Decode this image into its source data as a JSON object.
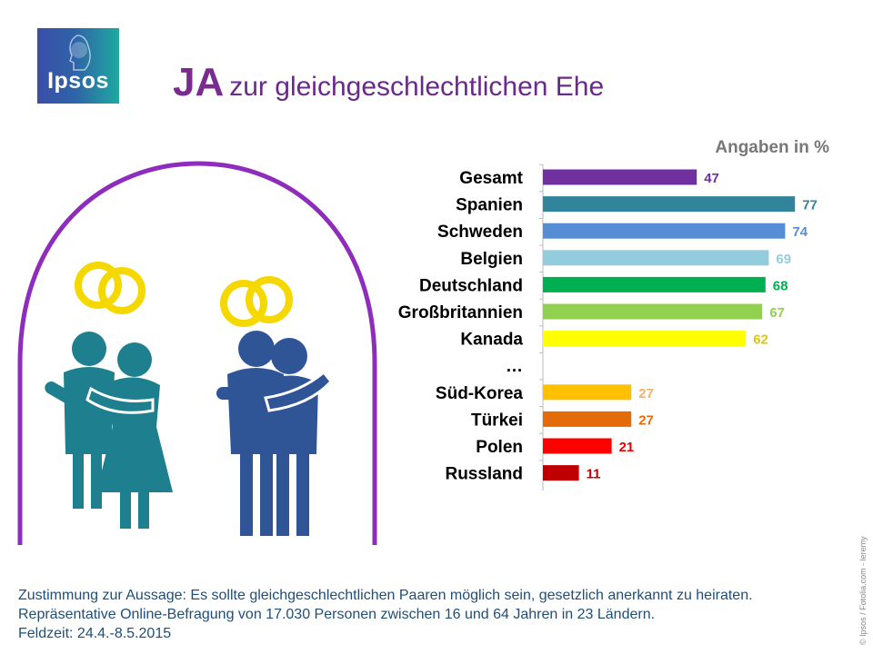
{
  "brand": {
    "logo_text": "Ipsos"
  },
  "title": {
    "bold": "JA",
    "rest": "zur gleichgeschlechtlichen Ehe"
  },
  "unit_label": "Angaben in %",
  "chart_data": {
    "type": "bar",
    "orientation": "horizontal",
    "categories": [
      "Gesamt",
      "Spanien",
      "Schweden",
      "Belgien",
      "Deutschland",
      "Großbritannien",
      "Kanada",
      "…",
      "Süd-Korea",
      "Türkei",
      "Polen",
      "Russland"
    ],
    "values": [
      47,
      77,
      74,
      69,
      68,
      67,
      62,
      null,
      27,
      27,
      21,
      11
    ],
    "colors": [
      "#7030a0",
      "#31849b",
      "#558ed5",
      "#93cddd",
      "#00b050",
      "#92d050",
      "#ffff00",
      null,
      "#ffc000",
      "#e36c09",
      "#ff0000",
      "#c00000"
    ],
    "label_colors": [
      "#7030a0",
      "#31849b",
      "#558ed5",
      "#93cddd",
      "#00b050",
      "#92d050",
      "#e0c800",
      null,
      "#f6b26b",
      "#e36c09",
      "#e00000",
      "#c00000"
    ],
    "ylabel": "Angaben in %",
    "xlim": [
      0,
      80
    ]
  },
  "footnote": {
    "line1": "Zustimmung zur Aussage: Es sollte gleichgeschlechtlichen Paaren möglich sein, gesetzlich anerkannt zu heiraten.",
    "line2": "Repräsentative Online-Befragung von 17.030 Personen zwischen 16 und 64 Jahren in 23 Ländern.",
    "line3": "Feldzeit: 24.4.-8.5.2015"
  },
  "credit": "© Ipsos / Fotolia.com - leremy"
}
